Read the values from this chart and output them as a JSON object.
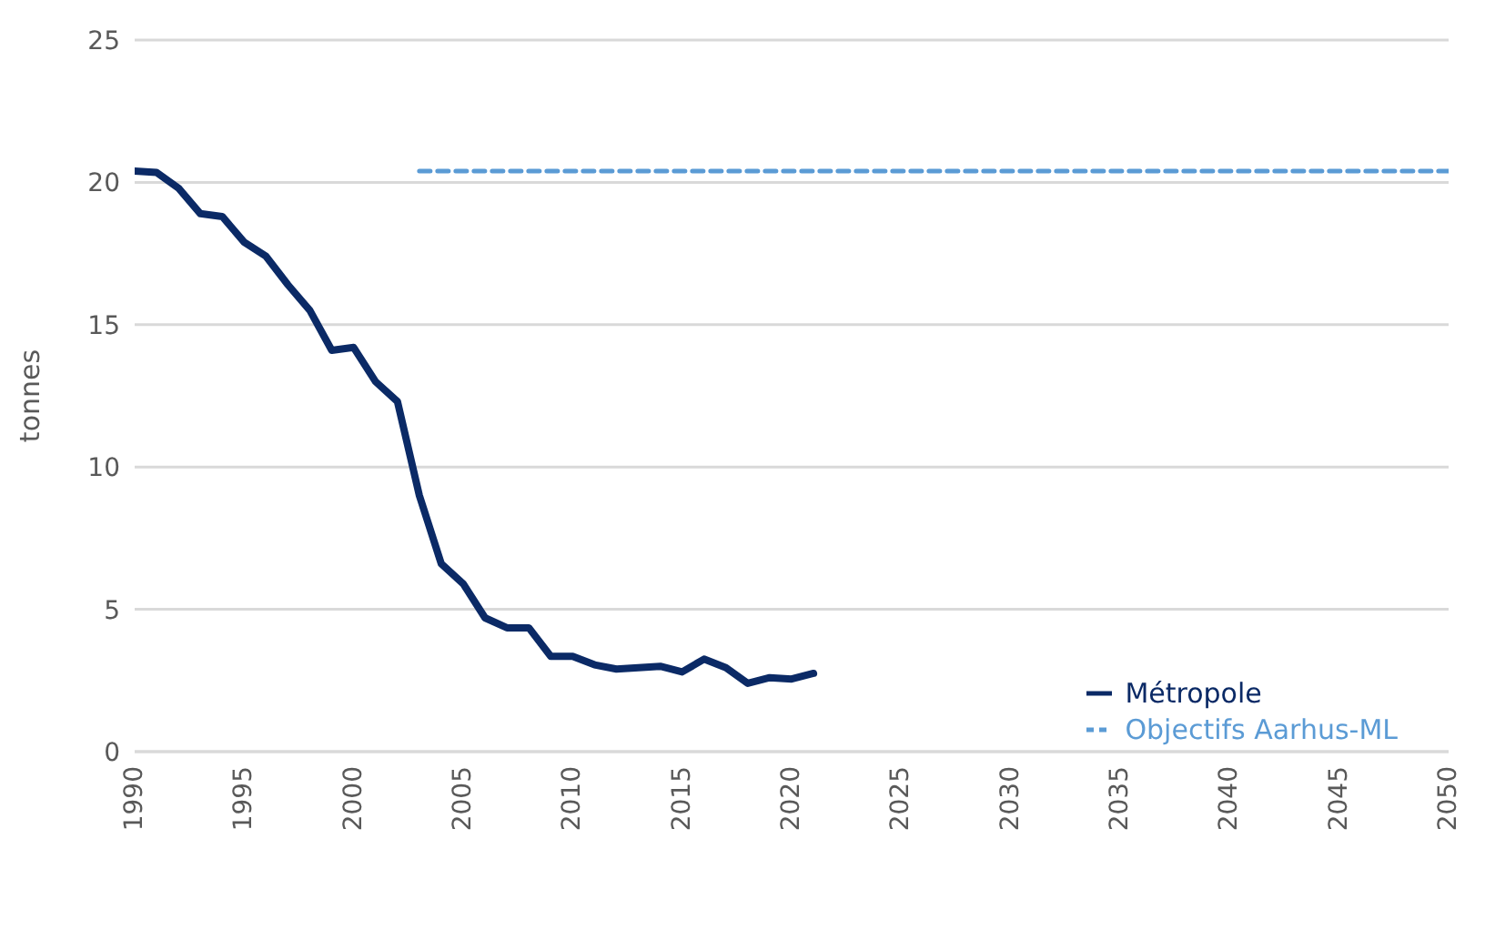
{
  "chart_data": {
    "type": "line",
    "ylabel": "tonnes",
    "xlim": [
      1990,
      2050
    ],
    "xticks": [
      1990,
      1995,
      2000,
      2005,
      2010,
      2015,
      2020,
      2025,
      2030,
      2035,
      2040,
      2045,
      2050
    ],
    "ylim": [
      0,
      25
    ],
    "yticks": [
      0,
      5,
      10,
      15,
      20,
      25
    ],
    "grid": "y",
    "legend": "bottom right",
    "marker": "none",
    "series": [
      {
        "name": "Métropole",
        "color": "#0b2a66",
        "line_style": "solid",
        "x": [
          1990,
          1991,
          1992,
          1993,
          1994,
          1995,
          1996,
          1997,
          1998,
          1999,
          2000,
          2001,
          2002,
          2003,
          2004,
          2005,
          2006,
          2007,
          2008,
          2009,
          2010,
          2011,
          2012,
          2013,
          2014,
          2015,
          2016,
          2017,
          2018,
          2019,
          2020,
          2021
        ],
        "values": [
          20.4,
          20.35,
          19.8,
          18.9,
          18.8,
          17.9,
          17.4,
          16.4,
          15.5,
          14.1,
          14.2,
          13.0,
          12.3,
          9.0,
          6.6,
          5.9,
          4.7,
          4.35,
          4.35,
          3.35,
          3.35,
          3.05,
          2.9,
          2.95,
          3.0,
          2.8,
          3.25,
          2.95,
          2.4,
          2.6,
          2.55,
          2.75
        ]
      },
      {
        "name": "Objectifs Aarhus-ML",
        "color": "#5b9bd5",
        "line_style": "dashed",
        "x": [
          2003,
          2050
        ],
        "values": [
          20.4,
          20.4
        ]
      }
    ]
  }
}
